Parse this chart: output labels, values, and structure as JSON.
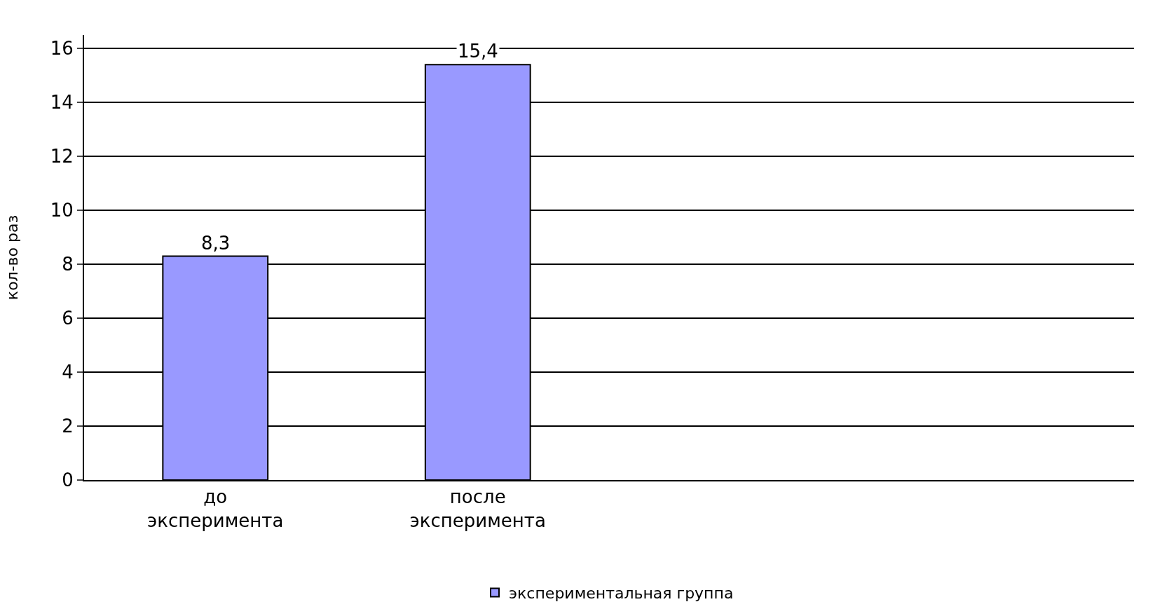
{
  "chart_data": {
    "type": "bar",
    "ylabel": "кол-во раз",
    "categories": [
      "до эксперимента",
      "после эксперимента",
      null,
      null
    ],
    "series": [
      {
        "name": "экспериментальная группа",
        "color": "#9999ff",
        "values": [
          8.3,
          15.4,
          null,
          null
        ],
        "value_labels": [
          "8,3",
          "15,4",
          null,
          null
        ]
      }
    ],
    "ylim": [
      0,
      16.5
    ],
    "yticks": [
      0,
      2,
      4,
      6,
      8,
      10,
      12,
      14,
      16
    ],
    "grid": "y",
    "legend": "bottom"
  }
}
